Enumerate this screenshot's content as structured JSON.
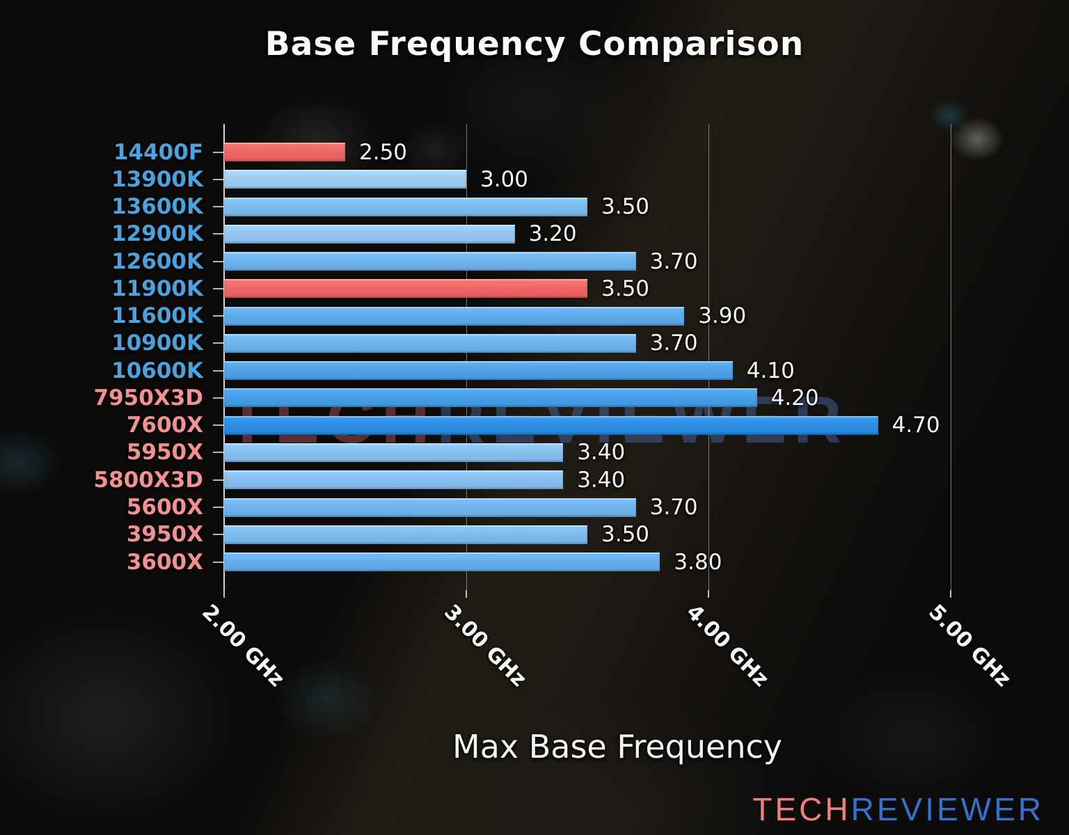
{
  "watermark": {
    "part1": "TECH",
    "part2": "REVIEWER"
  },
  "footer_logo": {
    "part1": "TECH",
    "part2": "REVIEWER"
  },
  "colors": {
    "intel_label": "#4aa2de",
    "amd_label": "#f29092",
    "highlight_bar": "#ee6868",
    "axis_line": "#eeeeee",
    "gridline": "#cdcdcd",
    "value_label": "#f7f7f7",
    "watermark_tech": "#be5c5c",
    "watermark_reviewer": "#557dbe",
    "logo_tech": "#f0807f",
    "logo_reviewer": "#3470cd"
  },
  "chart_data": {
    "type": "bar",
    "orientation": "horizontal",
    "title": "Base Frequency Comparison",
    "xlabel": "Max Base Frequency",
    "unit": "GHz",
    "xlim": [
      2.0,
      5.4
    ],
    "grid": true,
    "x_ticks": [
      {
        "value": 2.0,
        "label": "2.00 GHz"
      },
      {
        "value": 3.0,
        "label": "3.00 GHz"
      },
      {
        "value": 4.0,
        "label": "4.00 GHz"
      },
      {
        "value": 5.0,
        "label": "5.00 GHz"
      }
    ],
    "bars": [
      {
        "label": "14400F",
        "value": 2.5,
        "value_label": "2.50",
        "brand": "intel",
        "bar_color": "#ee6868",
        "label_color": "#4aa2de",
        "highlighted": true
      },
      {
        "label": "13900K",
        "value": 3.0,
        "value_label": "3.00",
        "brand": "intel",
        "bar_color": "#9ecdf2",
        "label_color": "#4aa2de",
        "highlighted": false
      },
      {
        "label": "13600K",
        "value": 3.5,
        "value_label": "3.50",
        "brand": "intel",
        "bar_color": "#7fbcee",
        "label_color": "#4aa2de",
        "highlighted": false
      },
      {
        "label": "12900K",
        "value": 3.2,
        "value_label": "3.20",
        "brand": "intel",
        "bar_color": "#93c6f0",
        "label_color": "#4aa2de",
        "highlighted": false
      },
      {
        "label": "12600K",
        "value": 3.7,
        "value_label": "3.70",
        "brand": "intel",
        "bar_color": "#6fb4ec",
        "label_color": "#4aa2de",
        "highlighted": false
      },
      {
        "label": "11900K",
        "value": 3.5,
        "value_label": "3.50",
        "brand": "intel",
        "bar_color": "#ee6868",
        "label_color": "#4aa2de",
        "highlighted": true
      },
      {
        "label": "11600K",
        "value": 3.9,
        "value_label": "3.90",
        "brand": "intel",
        "bar_color": "#60abea",
        "label_color": "#4aa2de",
        "highlighted": false
      },
      {
        "label": "10900K",
        "value": 3.7,
        "value_label": "3.70",
        "brand": "intel",
        "bar_color": "#6fb4ec",
        "label_color": "#4aa2de",
        "highlighted": false
      },
      {
        "label": "10600K",
        "value": 4.1,
        "value_label": "4.10",
        "brand": "intel",
        "bar_color": "#50a3e8",
        "label_color": "#4aa2de",
        "highlighted": false
      },
      {
        "label": "7950X3D",
        "value": 4.2,
        "value_label": "4.20",
        "brand": "amd",
        "bar_color": "#479fe7",
        "label_color": "#f29092",
        "highlighted": false
      },
      {
        "label": "7600X",
        "value": 4.7,
        "value_label": "4.70",
        "brand": "amd",
        "bar_color": "#2b8de4",
        "label_color": "#f29092",
        "highlighted": false
      },
      {
        "label": "5950X",
        "value": 3.4,
        "value_label": "3.40",
        "brand": "amd",
        "bar_color": "#87c0ef",
        "label_color": "#f29092",
        "highlighted": false
      },
      {
        "label": "5800X3D",
        "value": 3.4,
        "value_label": "3.40",
        "brand": "amd",
        "bar_color": "#87c0ef",
        "label_color": "#f29092",
        "highlighted": false
      },
      {
        "label": "5600X",
        "value": 3.7,
        "value_label": "3.70",
        "brand": "amd",
        "bar_color": "#6fb4ec",
        "label_color": "#f29092",
        "highlighted": false
      },
      {
        "label": "3950X",
        "value": 3.5,
        "value_label": "3.50",
        "brand": "amd",
        "bar_color": "#7fbcee",
        "label_color": "#f29092",
        "highlighted": false
      },
      {
        "label": "3600X",
        "value": 3.8,
        "value_label": "3.80",
        "brand": "amd",
        "bar_color": "#67afeb",
        "label_color": "#f29092",
        "highlighted": false
      }
    ]
  }
}
